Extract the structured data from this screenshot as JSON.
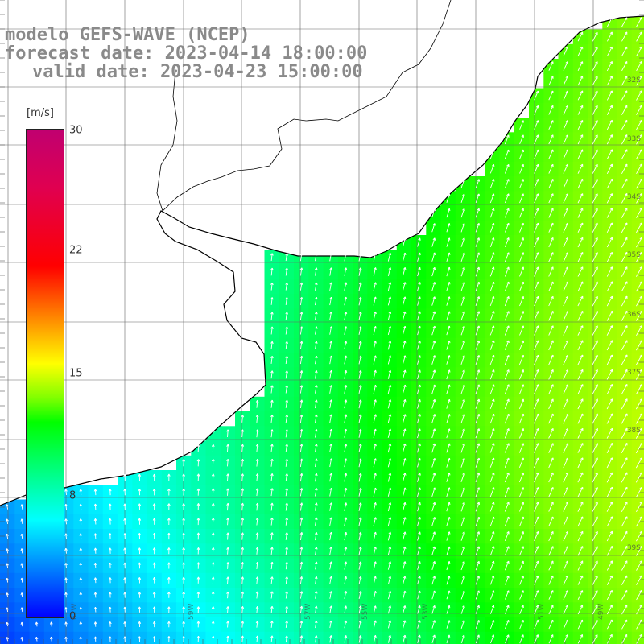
{
  "title_line1": "modelo GEFS-WAVE (NCEP)",
  "title_line2": "forecast date: 2023-04-14 18:00:00",
  "title_line3": "valid date: 2023-04-23 15:00:00",
  "colorbar": {
    "unit": "[m/s]",
    "ticks": [
      "30",
      "22",
      "15",
      "8",
      "0"
    ],
    "colors": [
      "#0000ff",
      "#00ffff",
      "#00ff00",
      "#ffff00",
      "#ff0000",
      "#c00070"
    ]
  },
  "lon_labels": [
    "61W",
    "59W",
    "57W",
    "55W",
    "53W",
    "51W",
    "49W"
  ],
  "lat_labels": [
    "32S",
    "33S",
    "34S",
    "35S",
    "36S",
    "37S",
    "38S",
    "39S"
  ]
}
